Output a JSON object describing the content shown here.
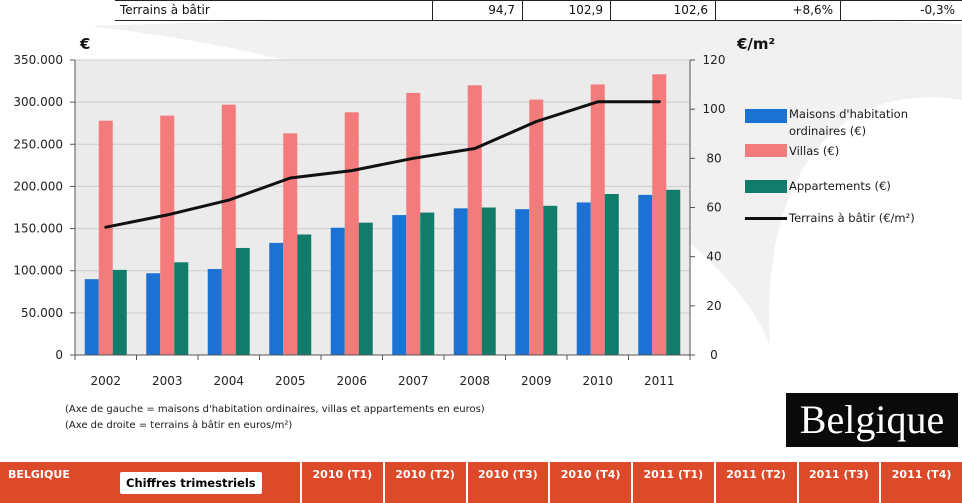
{
  "top_table": {
    "label": "Terrains à bâtir",
    "values": [
      "94,7",
      "102,9",
      "102,6",
      "+8,6%",
      "-0,3%"
    ]
  },
  "chart_data": {
    "type": "bar",
    "categories": [
      "2002",
      "2003",
      "2004",
      "2005",
      "2006",
      "2007",
      "2008",
      "2009",
      "2010",
      "2011"
    ],
    "y_left": {
      "label": "€",
      "range": [
        0,
        350000
      ],
      "ticks": [
        0,
        50000,
        100000,
        150000,
        200000,
        250000,
        300000,
        350000
      ],
      "tick_labels": [
        "0",
        "50.000",
        "100.000",
        "150.000",
        "200.000",
        "250.000",
        "300.000",
        "350.000"
      ]
    },
    "y_right": {
      "label": "€/m²",
      "range": [
        0,
        120
      ],
      "ticks": [
        0,
        20,
        40,
        60,
        80,
        100,
        120
      ],
      "tick_labels": [
        "0",
        "20",
        "40",
        "60",
        "80",
        "100",
        "120"
      ]
    },
    "series": [
      {
        "name": "Maisons d'habitation ordinaires (€)",
        "type": "bar",
        "axis": "left",
        "color": "#1c72d2",
        "values": [
          90000,
          97000,
          102000,
          133000,
          151000,
          166000,
          174000,
          173000,
          181000,
          190000
        ]
      },
      {
        "name": "Villas (€)",
        "type": "bar",
        "axis": "left",
        "color": "#f47b7b",
        "values": [
          278000,
          284000,
          297000,
          263000,
          288000,
          311000,
          320000,
          303000,
          321000,
          333000
        ]
      },
      {
        "name": "Appartements (€)",
        "type": "bar",
        "axis": "left",
        "color": "#127c6b",
        "values": [
          101000,
          110000,
          127000,
          143000,
          157000,
          169000,
          175000,
          177000,
          191000,
          196000
        ]
      },
      {
        "name": "Terrains à bâtir (€/m²)",
        "type": "line",
        "axis": "right",
        "color": "#111111",
        "values": [
          52,
          57,
          63,
          72,
          75,
          80,
          84,
          95,
          103,
          103
        ]
      }
    ],
    "grid": true,
    "legend_position": "right",
    "notes": [
      "(Axe de gauche = maisons d'habitation ordinaires, villas et appartements en euros)",
      "(Axe de droite = terrains à bâtir en euros/m²)"
    ]
  },
  "badge": {
    "text": "Belgique"
  },
  "bottom_bar": {
    "country": "BELGIQUE",
    "button_label": "Chiffres trimestriels",
    "quarters": [
      "2010 (T1)",
      "2010 (T2)",
      "2010 (T3)",
      "2010 (T4)",
      "2011 (T1)",
      "2011 (T2)",
      "2011 (T3)",
      "2011 (T4)"
    ]
  },
  "colors": {
    "accent": "#dc4a2a",
    "badge_bg": "#0a0a0a"
  }
}
